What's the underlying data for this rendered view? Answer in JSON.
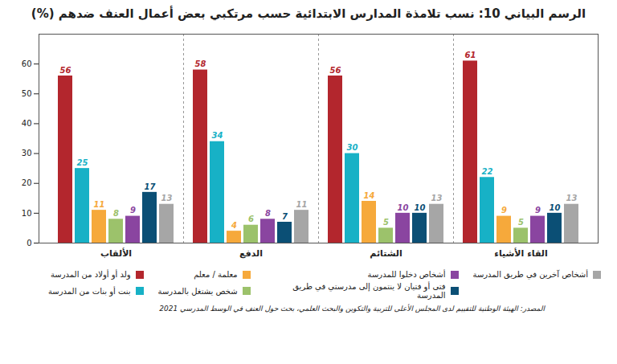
{
  "chart_data": {
    "type": "bar",
    "title": "الرسم البياني 10: نسب تلامذة المدارس الابتدائية حسب مرتكبي بعض أعمال العنف ضدهم (%)",
    "source": "المصدر: الهيئة الوطنية للتقييم لدى المجلس الأعلى للتربية والتكوين والبحث العلمي، بحث حول العنف في الوسط المدرسي 2021",
    "categories": [
      "الألقاب",
      "الدفع",
      "الشتائم",
      "القاء الأشياء"
    ],
    "series": [
      {
        "name": "ولد أو أولاد من المدرسة",
        "color": "#b3262d",
        "values": [
          56,
          58,
          56,
          61
        ]
      },
      {
        "name": "بنت أو بنات من المدرسة",
        "color": "#17b1c6",
        "values": [
          25,
          34,
          30,
          22
        ]
      },
      {
        "name": "معلمة / معلم",
        "color": "#f6a93b",
        "values": [
          11,
          4,
          14,
          9
        ]
      },
      {
        "name": "شخص يشتغل بالمدرسة",
        "color": "#9cc26b",
        "values": [
          8,
          6,
          5,
          5
        ]
      },
      {
        "name": "أشخاص دخلوا للمدرسة",
        "color": "#8a45a0",
        "values": [
          9,
          8,
          10,
          9
        ]
      },
      {
        "name": "فتى أو فتيان لا ينتمون إلى مدرستي في طريق المدرسة",
        "color": "#0b4f75",
        "values": [
          17,
          7,
          10,
          10
        ]
      },
      {
        "name": "أشخاص آخرين في طريق المدرسة",
        "color": "#a6a6a6",
        "values": [
          13,
          11,
          13,
          13
        ]
      }
    ],
    "ylim": [
      0,
      70
    ],
    "yticks": [
      0,
      10,
      20,
      30,
      40,
      50,
      60
    ],
    "grid": false,
    "data_labels": true,
    "legend": "bottom"
  }
}
